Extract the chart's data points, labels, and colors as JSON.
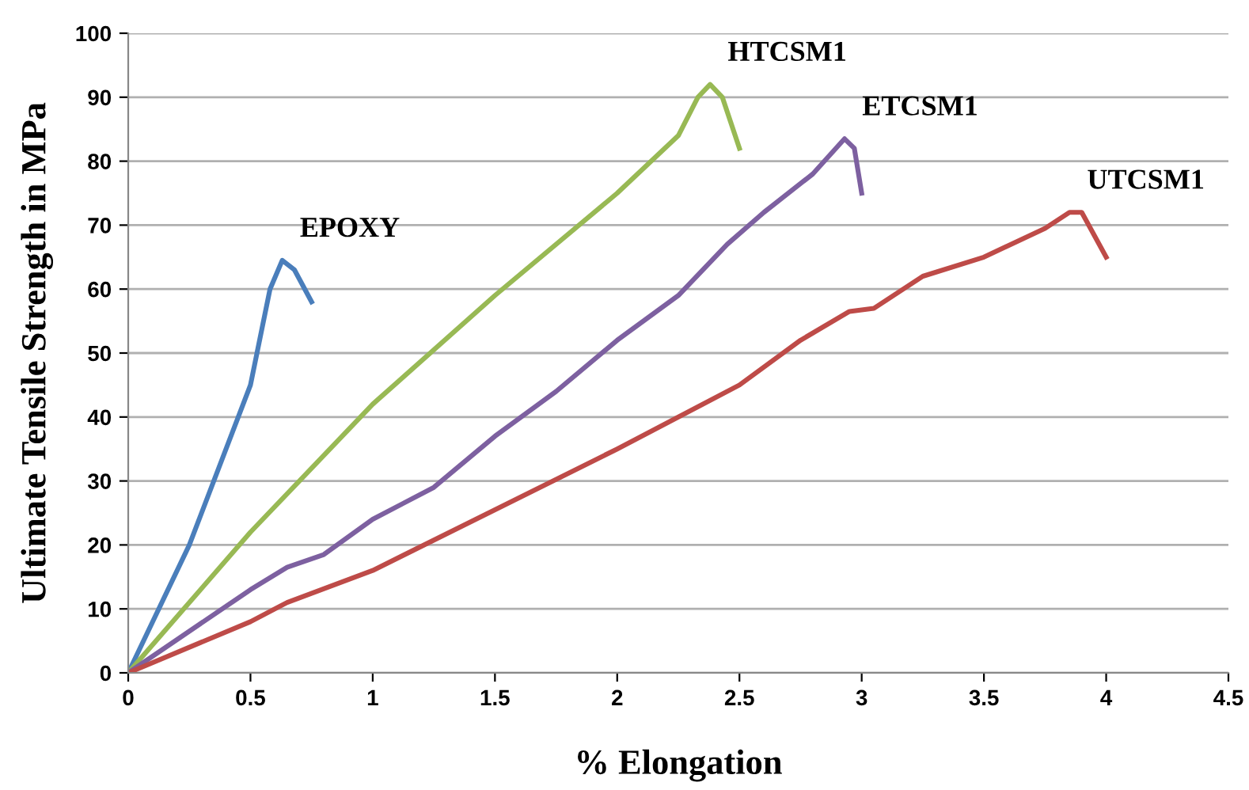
{
  "chart_data": {
    "type": "line",
    "xlabel": "% Elongation",
    "ylabel": "Ultimate Tensile Strength in MPa",
    "xlim": [
      0,
      4.5
    ],
    "xticks": [
      0,
      0.5,
      1,
      1.5,
      2,
      2.5,
      3,
      3.5,
      4,
      4.5
    ],
    "ylim": [
      0,
      100
    ],
    "yticks": [
      0,
      10,
      20,
      30,
      40,
      50,
      60,
      70,
      80,
      90,
      100
    ],
    "grid": "y",
    "legend": false,
    "marker": "none",
    "line_style": "solid",
    "series": [
      {
        "name": "EPOXY",
        "color": "#4a7ebb",
        "x": [
          0,
          0.25,
          0.5,
          0.58,
          0.63,
          0.68,
          0.75
        ],
        "values": [
          0,
          20,
          45,
          60,
          64.5,
          63,
          58
        ]
      },
      {
        "name": "HTCSM1",
        "color": "#98b954",
        "x": [
          0,
          0.5,
          0.7,
          1,
          1.5,
          2,
          2.25,
          2.33,
          2.38,
          2.43,
          2.5
        ],
        "values": [
          0,
          22,
          30,
          42,
          59,
          75,
          84,
          90,
          92,
          90,
          82
        ]
      },
      {
        "name": "ETCSM1",
        "color": "#7d60a0",
        "x": [
          0,
          0.5,
          0.65,
          0.8,
          1,
          1.25,
          1.5,
          1.75,
          2,
          2.25,
          2.45,
          2.6,
          2.8,
          2.93,
          2.97,
          3.0
        ],
        "values": [
          0,
          13,
          16.5,
          18.5,
          24,
          29,
          37,
          44,
          52,
          59,
          67,
          72,
          78,
          83.5,
          82,
          75
        ]
      },
      {
        "name": "UTCSM1",
        "color": "#be4b48",
        "x": [
          0,
          0.5,
          0.65,
          1,
          1.5,
          2,
          2.5,
          2.75,
          2.95,
          3.05,
          3.25,
          3.5,
          3.75,
          3.85,
          3.9,
          4.0
        ],
        "values": [
          0,
          8,
          11,
          16,
          25.5,
          35,
          45,
          52,
          56.5,
          57,
          62,
          65,
          69.5,
          72,
          72,
          65
        ]
      }
    ]
  }
}
